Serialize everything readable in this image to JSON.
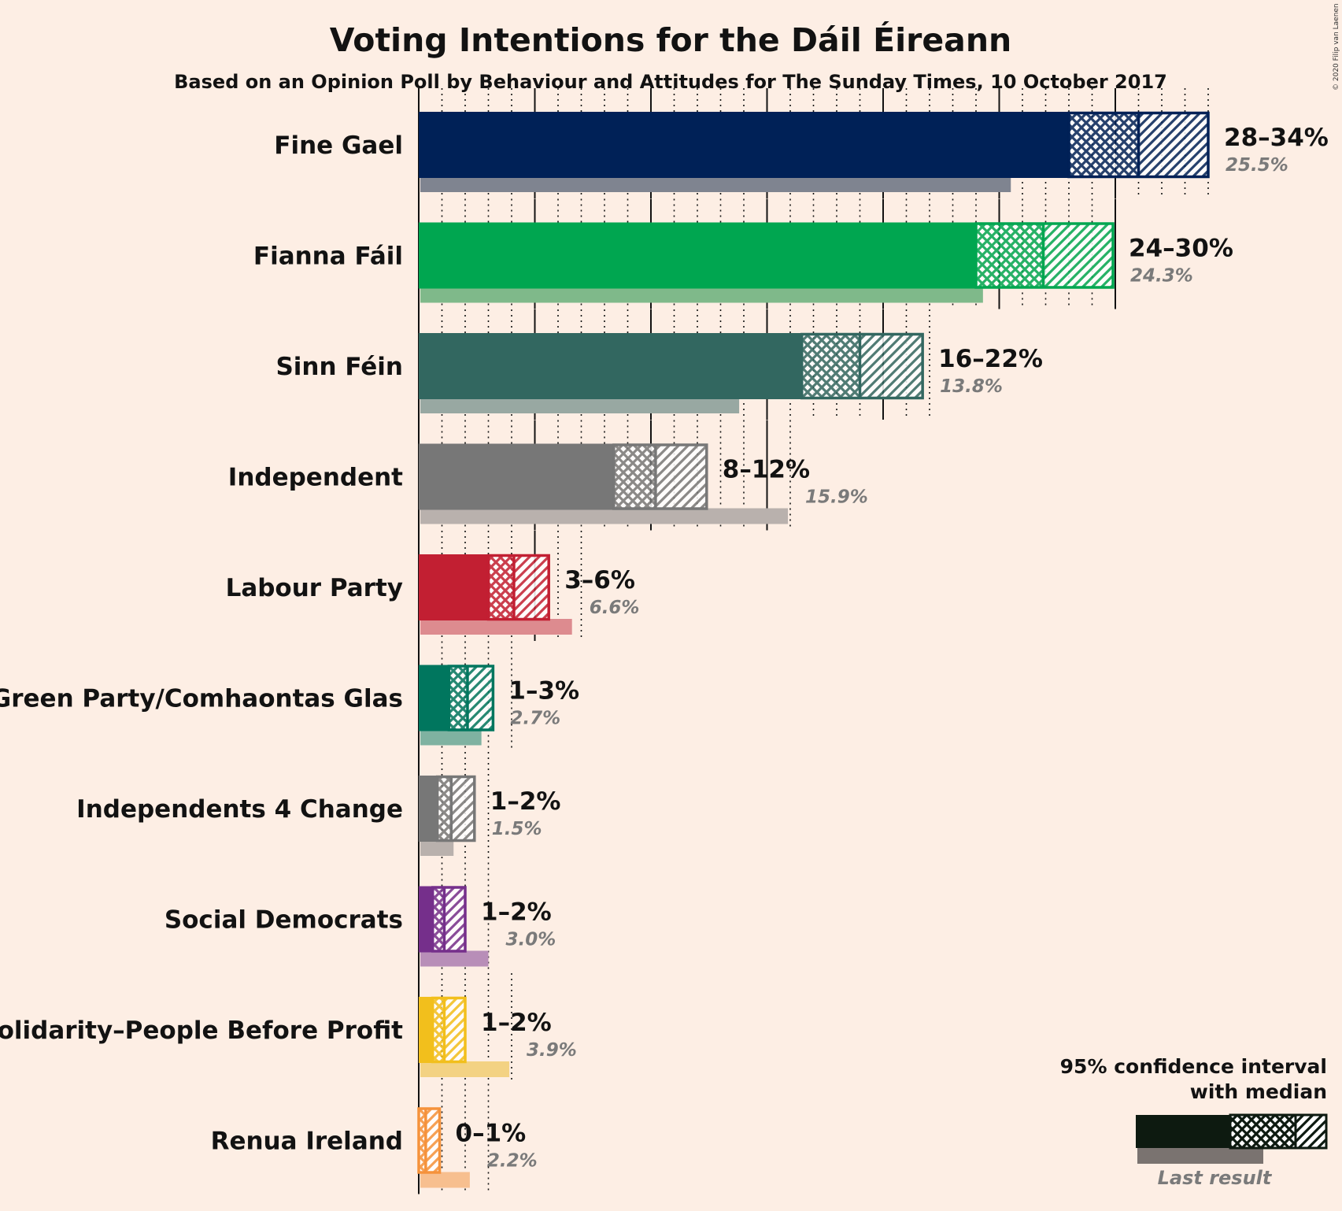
{
  "title": "Voting Intentions for the Dáil Éireann",
  "subtitle": "Based on an Opinion Poll by Behaviour and Attitudes for The Sunday Times, 10 October 2017",
  "copyright": "© 2020 Filip van Laenen",
  "legend": {
    "line1": "95% confidence interval",
    "line2": "with median",
    "last_result": "Last result"
  },
  "chart_data": {
    "type": "bar",
    "orientation": "horizontal",
    "unit": "%",
    "xlim": [
      0,
      34
    ],
    "gridlines": {
      "major_every": 5,
      "minor_every": 1
    },
    "series_meaning": [
      "95% confidence interval low",
      "median",
      "95% confidence interval high",
      "last result"
    ],
    "parties": [
      {
        "name": "Fine Gael",
        "range_label": "28–34%",
        "ci_low": 28.0,
        "median": 31.0,
        "ci_high": 34.0,
        "last_result": 25.5,
        "last_label": "25.5%",
        "color": "#002157",
        "last_color": "#7F8490"
      },
      {
        "name": "Fianna Fáil",
        "range_label": "24–30%",
        "ci_low": 24.0,
        "median": 26.9,
        "ci_high": 29.9,
        "last_result": 24.3,
        "last_label": "24.3%",
        "color": "#00A650",
        "last_color": "#7FB98A"
      },
      {
        "name": "Sinn Féin",
        "range_label": "16–22%",
        "ci_low": 16.5,
        "median": 19.0,
        "ci_high": 21.7,
        "last_result": 13.8,
        "last_label": "13.8%",
        "color": "#326760",
        "last_color": "#98A8A2"
      },
      {
        "name": "Independent",
        "range_label": "8–12%",
        "ci_low": 8.4,
        "median": 10.2,
        "ci_high": 12.4,
        "last_result": 15.9,
        "last_label": "15.9%",
        "color": "#777777",
        "last_color": "#B9B1AD"
      },
      {
        "name": "Labour Party",
        "range_label": "3–6%",
        "ci_low": 3.0,
        "median": 4.1,
        "ci_high": 5.6,
        "last_result": 6.6,
        "last_label": "6.6%",
        "color": "#C21F32",
        "last_color": "#DD8B8F"
      },
      {
        "name": "Green Party/Comhaontas Glas",
        "range_label": "1–3%",
        "ci_low": 1.3,
        "median": 2.1,
        "ci_high": 3.2,
        "last_result": 2.7,
        "last_label": "2.7%",
        "color": "#00765E",
        "last_color": "#7FB2A1"
      },
      {
        "name": "Independents 4 Change",
        "range_label": "1–2%",
        "ci_low": 0.8,
        "median": 1.4,
        "ci_high": 2.4,
        "last_result": 1.5,
        "last_label": "1.5%",
        "color": "#777777",
        "last_color": "#B9B1AD"
      },
      {
        "name": "Social Democrats",
        "range_label": "1–2%",
        "ci_low": 0.6,
        "median": 1.1,
        "ci_high": 2.0,
        "last_result": 3.0,
        "last_label": "3.0%",
        "color": "#752F8B",
        "last_color": "#B88EB8"
      },
      {
        "name": "Solidarity–People Before Profit",
        "range_label": "1–2%",
        "ci_low": 0.6,
        "median": 1.1,
        "ci_high": 2.0,
        "last_result": 3.9,
        "last_label": "3.9%",
        "color": "#F2BF1C",
        "last_color": "#F3D283"
      },
      {
        "name": "Renua Ireland",
        "range_label": "0–1%",
        "ci_low": 0.0,
        "median": 0.3,
        "ci_high": 0.9,
        "last_result": 2.2,
        "last_label": "2.2%",
        "color": "#F5923B",
        "last_color": "#F7BF8F"
      }
    ]
  }
}
